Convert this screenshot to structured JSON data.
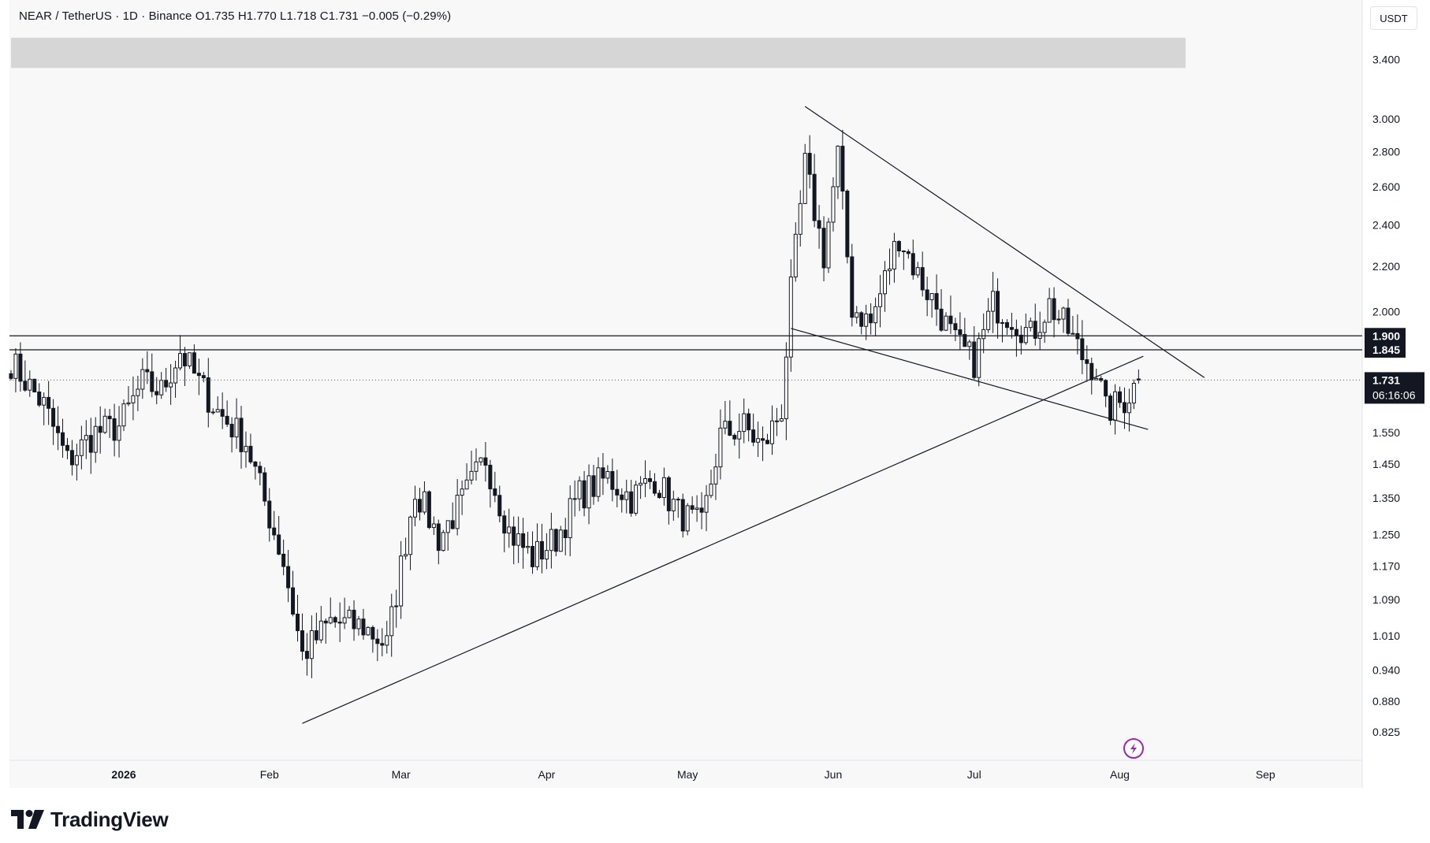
{
  "header": {
    "legend": "NEAR / TetherUS · 1D · Binance  O1.735  H1.770  L1.718  C1.731  −0.005 (−0.29%)",
    "currency": "USDT"
  },
  "brand": {
    "name": "TradingView",
    "icon": "tradingview-logo-icon"
  },
  "price_tags": {
    "level1": "1.900",
    "level2": "1.845",
    "current": "1.731",
    "countdown": "06:16:06"
  },
  "widgets": {
    "bolt_icon": "lightning-bolt-icon"
  },
  "colors": {
    "background": "#f8f8f8",
    "candle_up": "#ffffff",
    "candle_down": "#131722",
    "line": "#131722",
    "band": "#d6d6d6"
  },
  "chart_data": {
    "type": "candlestick",
    "title": "NEAR / TetherUS · 1D · Binance",
    "ylabel": "USDT",
    "y_scale": "log",
    "ylim": [
      0.78,
      4.0
    ],
    "y_ticks": [
      3.4,
      3.0,
      2.8,
      2.6,
      2.4,
      2.2,
      2.0,
      1.55,
      1.45,
      1.35,
      1.25,
      1.17,
      1.09,
      1.01,
      0.94,
      0.88,
      0.825
    ],
    "y_tick_labels": [
      "3.400",
      "3.000",
      "2.800",
      "2.600",
      "2.400",
      "2.200",
      "2.000",
      "1.550",
      "1.450",
      "1.350",
      "1.250",
      "1.170",
      "1.090",
      "1.010",
      "0.940",
      "0.880",
      "0.825"
    ],
    "x_labels": [
      {
        "label": "2026",
        "date": "2026-01-01",
        "bold": true
      },
      {
        "label": "Feb",
        "date": "2026-02-01"
      },
      {
        "label": "Mar",
        "date": "2026-03-01"
      },
      {
        "label": "Apr",
        "date": "2026-04-01"
      },
      {
        "label": "May",
        "date": "2026-05-01"
      },
      {
        "label": "Jun",
        "date": "2026-06-01"
      },
      {
        "label": "Jul",
        "date": "2026-07-01"
      },
      {
        "label": "Aug",
        "date": "2026-08-01"
      },
      {
        "label": "Sep",
        "date": "2026-09-01"
      }
    ],
    "x_range": [
      "2025-12-08",
      "2026-09-21"
    ],
    "price_path": [
      [
        "2025-12-08",
        1.8
      ],
      [
        "2025-12-15",
        1.64
      ],
      [
        "2025-12-20",
        1.46
      ],
      [
        "2025-12-26",
        1.55
      ],
      [
        "2025-12-31",
        1.57
      ],
      [
        "2026-01-05",
        1.72
      ],
      [
        "2026-01-09",
        1.69
      ],
      [
        "2026-01-13",
        1.84
      ],
      [
        "2026-01-17",
        1.72
      ],
      [
        "2026-01-21",
        1.62
      ],
      [
        "2026-01-27",
        1.52
      ],
      [
        "2026-01-31",
        1.34
      ],
      [
        "2026-02-04",
        1.18
      ],
      [
        "2026-02-08",
        0.97
      ],
      [
        "2026-02-14",
        1.04
      ],
      [
        "2026-02-21",
        1.03
      ],
      [
        "2026-02-26",
        0.99
      ],
      [
        "2026-03-04",
        1.38
      ],
      [
        "2026-03-09",
        1.24
      ],
      [
        "2026-03-14",
        1.34
      ],
      [
        "2026-03-19",
        1.47
      ],
      [
        "2026-03-24",
        1.26
      ],
      [
        "2026-03-29",
        1.19
      ],
      [
        "2026-04-03",
        1.24
      ],
      [
        "2026-04-08",
        1.36
      ],
      [
        "2026-04-14",
        1.41
      ],
      [
        "2026-04-19",
        1.35
      ],
      [
        "2026-04-24",
        1.41
      ],
      [
        "2026-04-29",
        1.31
      ],
      [
        "2026-05-04",
        1.27
      ],
      [
        "2026-05-08",
        1.54
      ],
      [
        "2026-05-13",
        1.57
      ],
      [
        "2026-05-17",
        1.5
      ],
      [
        "2026-05-21",
        1.63
      ],
      [
        "2026-05-23",
        2.08
      ],
      [
        "2026-05-26",
        2.72
      ],
      [
        "2026-05-30",
        2.25
      ],
      [
        "2026-06-02",
        2.78
      ],
      [
        "2026-06-05",
        2.02
      ],
      [
        "2026-06-09",
        1.95
      ],
      [
        "2026-06-15",
        2.35
      ],
      [
        "2026-06-19",
        2.16
      ],
      [
        "2026-06-23",
        2.02
      ],
      [
        "2026-06-27",
        1.87
      ],
      [
        "2026-07-01",
        1.8
      ],
      [
        "2026-07-05",
        2.03
      ],
      [
        "2026-07-09",
        1.98
      ],
      [
        "2026-07-13",
        1.9
      ],
      [
        "2026-07-17",
        2.03
      ],
      [
        "2026-07-21",
        1.92
      ],
      [
        "2026-07-24",
        1.82
      ],
      [
        "2026-07-27",
        1.77
      ],
      [
        "2026-07-29",
        1.62
      ],
      [
        "2026-08-02",
        1.66
      ],
      [
        "2026-08-05",
        1.731
      ]
    ],
    "trendlines": [
      {
        "name": "rising support",
        "from": [
          "2026-02-08",
          0.84
        ],
        "to": [
          "2026-08-06",
          1.82
        ]
      },
      {
        "name": "descending resistance",
        "from": [
          "2026-05-26",
          3.08
        ],
        "to": [
          "2026-08-19",
          1.74
        ]
      },
      {
        "name": "falling wedge base",
        "from": [
          "2026-05-23",
          1.93
        ],
        "to": [
          "2026-08-07",
          1.56
        ]
      }
    ],
    "horizontal_levels": [
      1.9,
      1.845
    ],
    "current_price": 1.731,
    "band_zone": {
      "from": "2025-12-08",
      "to": "2026-08-15",
      "y_top": 3.56,
      "y_bottom": 3.34
    }
  }
}
